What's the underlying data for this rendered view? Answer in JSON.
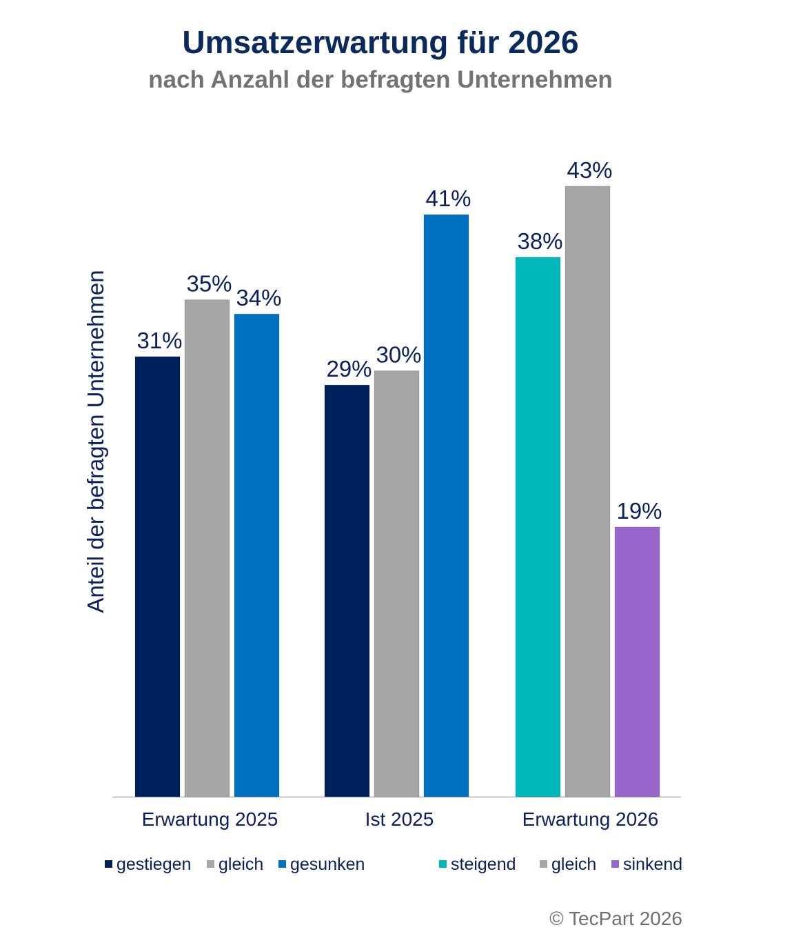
{
  "chart_data": {
    "type": "bar",
    "title": "Umsatzerwartung für 2026",
    "subtitle": "nach Anzahl der befragten Unternehmen",
    "xlabel": "",
    "ylabel": "Anteil der befragten Unternehmen",
    "ylim": [
      0,
      50
    ],
    "grid": false,
    "value_format": "%",
    "groups": [
      {
        "category": "Erwartung 2025",
        "bars": [
          {
            "name": "gestiegen",
            "value": 31,
            "color": "#00205b"
          },
          {
            "name": "gleich",
            "value": 35,
            "color": "#a6a6a6"
          },
          {
            "name": "gesunken",
            "value": 34,
            "color": "#0070c0"
          }
        ]
      },
      {
        "category": "Ist 2025",
        "bars": [
          {
            "name": "gestiegen",
            "value": 29,
            "color": "#00205b"
          },
          {
            "name": "gleich",
            "value": 30,
            "color": "#a6a6a6"
          },
          {
            "name": "gesunken",
            "value": 41,
            "color": "#0070c0"
          }
        ]
      },
      {
        "category": "Erwartung 2026",
        "bars": [
          {
            "name": "steigend",
            "value": 38,
            "color": "#00b8bc"
          },
          {
            "name": "gleich",
            "value": 43,
            "color": "#a6a6a6"
          },
          {
            "name": "sinkend",
            "value": 19,
            "color": "#9966cc"
          }
        ]
      }
    ],
    "legend_position": "bottom",
    "legend": [
      {
        "label": "gestiegen",
        "color": "#00205b"
      },
      {
        "label": "gleich",
        "color": "#a6a6a6"
      },
      {
        "label": "gesunken",
        "color": "#0070c0"
      },
      {
        "label": "steigend",
        "color": "#00b8bc"
      },
      {
        "label": "gleich",
        "color": "#a6a6a6"
      },
      {
        "label": "sinkend",
        "color": "#9966cc"
      }
    ]
  },
  "copyright": "© TecPart 2026"
}
